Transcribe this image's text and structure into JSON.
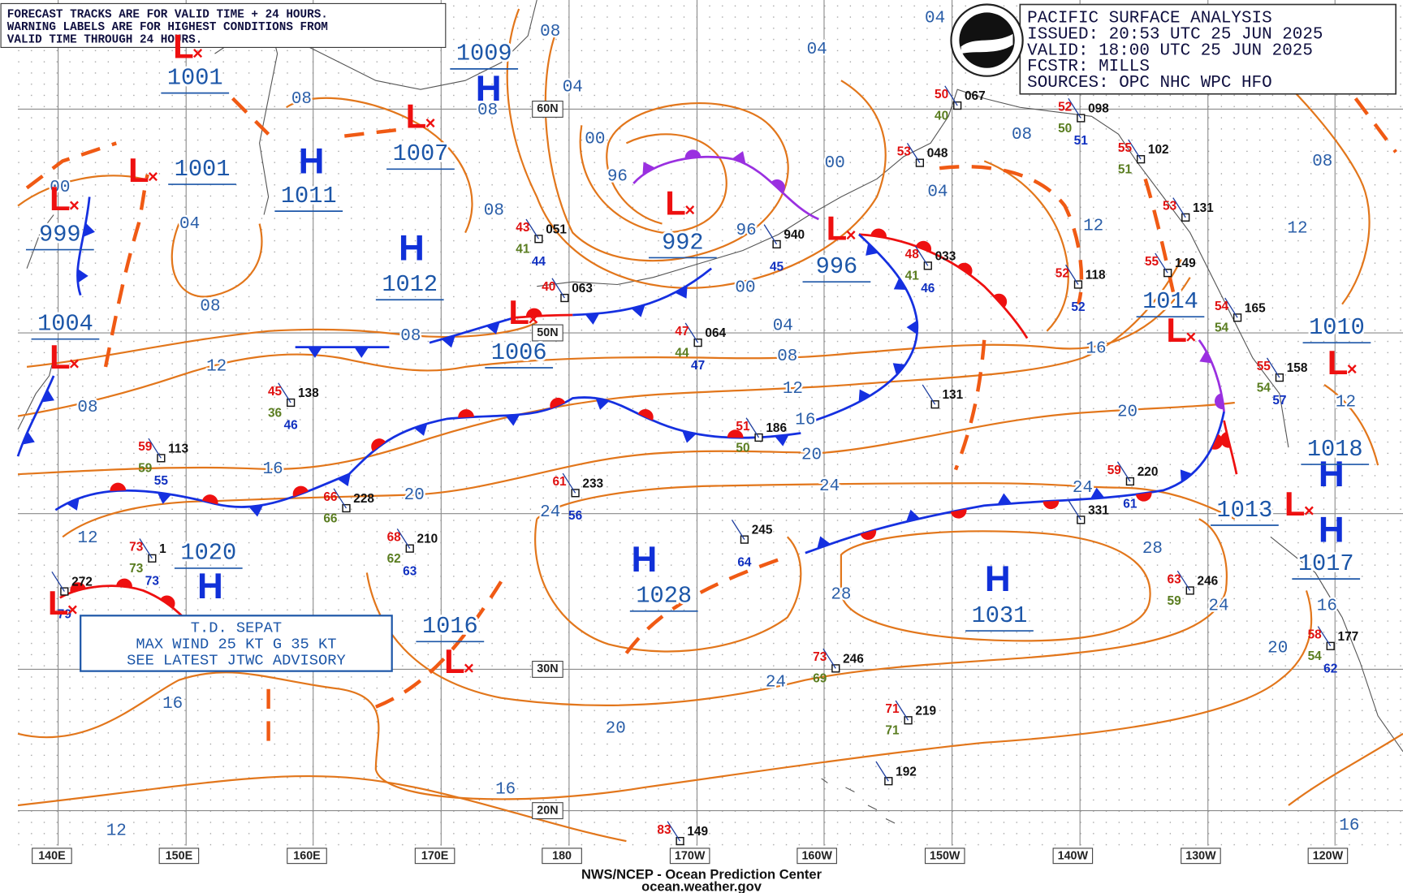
{
  "header": {
    "note": [
      "FORECAST TRACKS ARE FOR VALID TIME + 24 HOURS.",
      "WARNING LABELS ARE FOR HIGHEST CONDITIONS FROM",
      "VALID TIME THROUGH 24 HOURS."
    ]
  },
  "title_block": {
    "lines": [
      "PACIFIC SURFACE ANALYSIS",
      "ISSUED: 20:53 UTC 25 JUN 2025",
      "VALID:  18:00 UTC 25 JUN 2025",
      "FCSTR:  MILLS",
      "SOURCES: OPC NHC WPC HFO"
    ]
  },
  "advisory": {
    "lines": [
      "T.D. SEPAT",
      "MAX WIND 25 KT G 35 KT",
      "SEE LATEST JTWC ADVISORY"
    ]
  },
  "footer": {
    "agency": "NWS/NCEP - Ocean Prediction Center",
    "url": "ocean.weather.gov"
  },
  "longitude_labels": [
    "140E",
    "150E",
    "160E",
    "170E",
    "180",
    "170W",
    "160W",
    "150W",
    "140W",
    "130W",
    "120W"
  ],
  "latitude_labels": [
    "60N",
    "50N",
    "30N",
    "20N"
  ],
  "pressure_centers": [
    {
      "type": "L",
      "pressure": 1001
    },
    {
      "type": "H",
      "pressure": 1009
    },
    {
      "type": "L",
      "pressure": 1007
    },
    {
      "type": "H",
      "pressure": 1011
    },
    {
      "type": "L",
      "pressure": 1001
    },
    {
      "type": "L",
      "pressure": 999
    },
    {
      "type": "L",
      "pressure": 992
    },
    {
      "type": "L",
      "pressure": 996
    },
    {
      "type": "H",
      "pressure": 1012
    },
    {
      "type": "L",
      "pressure": 1006
    },
    {
      "type": "L",
      "pressure": 1004
    },
    {
      "type": "L",
      "pressure": 1014
    },
    {
      "type": "L",
      "pressure": 1010
    },
    {
      "type": "H",
      "pressure": 1018
    },
    {
      "type": "L",
      "pressure": 1013
    },
    {
      "type": "H",
      "pressure": 1017
    },
    {
      "type": "H",
      "pressure": 1020
    },
    {
      "type": "H",
      "pressure": 1028
    },
    {
      "type": "H",
      "pressure": 1031
    },
    {
      "type": "L",
      "pressure": 1016
    },
    {
      "type": "L"
    }
  ],
  "isobar_labels": [
    "04",
    "08",
    "04",
    "04",
    "08",
    "08",
    "00",
    "96",
    "00",
    "08",
    "04",
    "08",
    "00",
    "04",
    "08",
    "12",
    "12",
    "96",
    "08",
    "00",
    "04",
    "08",
    "16",
    "08",
    "12",
    "12",
    "12",
    "08",
    "20",
    "16",
    "20",
    "16",
    "24",
    "20",
    "24",
    "24",
    "12",
    "28",
    "28",
    "24",
    "16",
    "20",
    "24",
    "16",
    "20",
    "16",
    "12",
    "16"
  ],
  "stations": [
    {
      "pressure": "067",
      "temp": 50,
      "dew": 40
    },
    {
      "pressure": "098",
      "temp": 52,
      "dew": 50,
      "sst": 51
    },
    {
      "pressure": "048",
      "temp": 53
    },
    {
      "pressure": "102",
      "temp": 55,
      "dew": 51
    },
    {
      "pressure": "131",
      "temp": 53
    },
    {
      "pressure": "051",
      "temp": 43,
      "dew": 41,
      "sst": 44
    },
    {
      "pressure": "063",
      "temp": 40
    },
    {
      "pressure": "940",
      "sst": 45
    },
    {
      "pressure": "033",
      "temp": 48,
      "dew": 41,
      "sst": 46
    },
    {
      "pressure": "118",
      "temp": 52,
      "sst": 52
    },
    {
      "pressure": "149",
      "temp": 55
    },
    {
      "pressure": "165",
      "temp": 54,
      "dew": 54
    },
    {
      "pressure": "064",
      "temp": 47,
      "dew": 44,
      "sst": 47
    },
    {
      "pressure": "158",
      "temp": 55,
      "dew": 54,
      "sst": 57
    },
    {
      "pressure": "138",
      "temp": 45,
      "dew": 36,
      "sst": 46
    },
    {
      "pressure": "131"
    },
    {
      "pressure": "186",
      "temp": 51,
      "dew": 50
    },
    {
      "pressure": "113",
      "temp": 59,
      "dew": 59,
      "sst": 55
    },
    {
      "pressure": "220",
      "temp": 59,
      "sst": 61
    },
    {
      "pressure": "233",
      "temp": 61,
      "sst": 56
    },
    {
      "pressure": "228",
      "temp": 66,
      "dew": 66
    },
    {
      "pressure": "331"
    },
    {
      "pressure": "245",
      "sst": 64
    },
    {
      "pressure": "210",
      "temp": 68,
      "dew": 62,
      "sst": 63
    },
    {
      "pressure": "1",
      "temp": 73,
      "dew": 73,
      "sst": 73
    },
    {
      "pressure": "246",
      "temp": 63,
      "dew": 59
    },
    {
      "pressure": "246",
      "temp": 73,
      "dew": 69
    },
    {
      "pressure": "219",
      "temp": 71,
      "dew": 71
    },
    {
      "pressure": "192"
    },
    {
      "pressure": "177",
      "temp": 58,
      "dew": 54,
      "sst": 62
    },
    {
      "pressure": "149",
      "temp": 83
    },
    {
      "pressure": "272",
      "sst": 79
    }
  ]
}
